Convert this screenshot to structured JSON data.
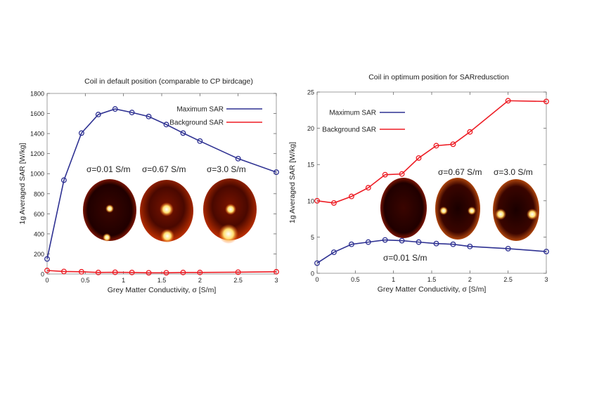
{
  "chart_data": [
    {
      "type": "line",
      "title": "Coil in default position (comparable to CP birdcage)",
      "xlabel": "Grey Matter Conductivity, σ [S/m]",
      "ylabel": "1g Averaged SAR [W/kg]",
      "xlim": [
        0,
        3
      ],
      "ylim": [
        0,
        1800
      ],
      "xticks": [
        0,
        0.5,
        1,
        1.5,
        2,
        2.5,
        3
      ],
      "yticks": [
        0,
        200,
        400,
        600,
        800,
        1000,
        1200,
        1400,
        1600,
        1800
      ],
      "legend_position": "top-right",
      "x": [
        0,
        0.22,
        0.45,
        0.67,
        0.89,
        1.11,
        1.33,
        1.56,
        1.78,
        2,
        2.5,
        3
      ],
      "series": [
        {
          "name": "Maximum SAR",
          "color": "#2e3192",
          "values": [
            150,
            935,
            1405,
            1590,
            1645,
            1610,
            1570,
            1490,
            1405,
            1325,
            1150,
            1015
          ]
        },
        {
          "name": "Background SAR",
          "color": "#ed1c24",
          "values": [
            35,
            25,
            22,
            15,
            17,
            15,
            12,
            12,
            15,
            15,
            18,
            22
          ]
        }
      ],
      "annotations": [
        "σ=0.01 S/m",
        "σ=0.67 S/m",
        "σ=3.0 S/m"
      ]
    },
    {
      "type": "line",
      "title": "Coil in optimum position for SARredusction",
      "xlabel": "Grey Matter Conductivity, σ [S/m]",
      "ylabel": "1g Averaged SAR [W/kg]",
      "xlim": [
        0,
        3
      ],
      "ylim": [
        0,
        25
      ],
      "xticks": [
        0,
        0.5,
        1,
        1.5,
        2,
        2.5,
        3
      ],
      "yticks": [
        0,
        5,
        10,
        15,
        20,
        25
      ],
      "legend_position": "top-left",
      "x": [
        0,
        0.22,
        0.45,
        0.67,
        0.89,
        1.11,
        1.33,
        1.56,
        1.78,
        2,
        2.5,
        3
      ],
      "series": [
        {
          "name": "Maximum SAR",
          "color": "#2e3192",
          "values": [
            1.4,
            2.9,
            4.0,
            4.3,
            4.6,
            4.5,
            4.3,
            4.1,
            4.0,
            3.7,
            3.4,
            3.0
          ]
        },
        {
          "name": "Background SAR",
          "color": "#ed1c24",
          "values": [
            10,
            9.7,
            10.6,
            11.8,
            13.6,
            13.7,
            15.9,
            17.6,
            17.8,
            19.5,
            23.8,
            23.7
          ]
        }
      ],
      "annotations": [
        "σ=0.01 S/m",
        "σ=0.67 S/m",
        "σ=3.0 S/m"
      ]
    }
  ]
}
